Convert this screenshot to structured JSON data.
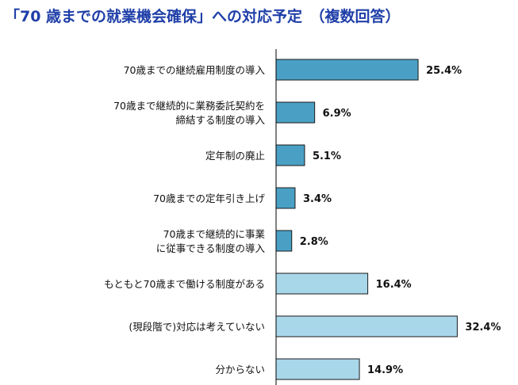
{
  "title": "「70 歳までの就業機会確保」への対応予定　（複数回答）",
  "colors": {
    "title": "#1f3fa8",
    "bar_dark": "#4aa0c4",
    "bar_light": "#a9d7ea",
    "bar_stroke": "#1a1a1a",
    "axis": "#000000"
  },
  "chart_data": {
    "type": "bar",
    "orientation": "horizontal",
    "title": "「70 歳までの就業機会確保」への対応予定　（複数回答）",
    "xlabel": "",
    "ylabel": "",
    "unit": "%",
    "xlim": [
      0,
      40
    ],
    "grid": false,
    "legend": "none",
    "categories": [
      [
        "70歳までの継続雇用制度の導入"
      ],
      [
        "70歳まで継続的に業務委託契約を",
        "締結する制度の導入"
      ],
      [
        "定年制の廃止"
      ],
      [
        "70歳までの定年引き上げ"
      ],
      [
        "70歳まで継続的に事業",
        "に従事できる制度の導入"
      ],
      [
        "もともと70歳まで働ける制度がある"
      ],
      [
        "(現段階で)対応は考えていない"
      ],
      [
        "分からない"
      ]
    ],
    "values": [
      25.4,
      6.9,
      5.1,
      3.4,
      2.8,
      16.4,
      32.4,
      14.9
    ],
    "value_labels": [
      "25.4%",
      "6.9%",
      "5.1%",
      "3.4%",
      "2.8%",
      "16.4%",
      "32.4%",
      "14.9%"
    ],
    "bar_shades": [
      "dark",
      "dark",
      "dark",
      "dark",
      "dark",
      "light",
      "light",
      "light"
    ]
  }
}
